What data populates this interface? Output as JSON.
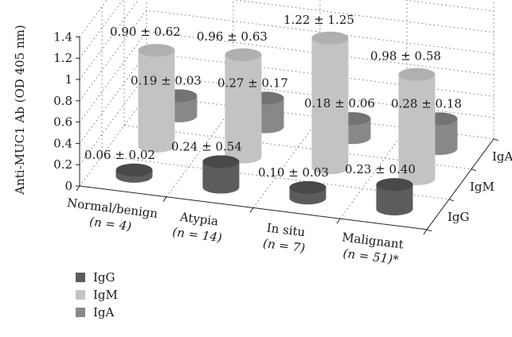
{
  "chart_data": {
    "type": "bar",
    "subtype": "3d-cylinder",
    "ylabel": "Anti-MUC1 Ab (OD 405 nm)",
    "ylim": [
      0,
      1.4
    ],
    "yticks": [
      "0",
      "0.2",
      "0.4",
      "0.6",
      "0.8",
      "1",
      "1.2",
      "1.4"
    ],
    "grid": true,
    "legend_position": "bottom-left",
    "categories": [
      {
        "name": "Normal/benign",
        "n": "(n = 4)"
      },
      {
        "name": "Atypia",
        "n": "(n = 14)"
      },
      {
        "name": "In situ",
        "n": "(n = 7)"
      },
      {
        "name": "Malignant",
        "n": "(n = 51)*"
      }
    ],
    "series": [
      {
        "name": "IgG",
        "color": "#5c5c5c",
        "top": "#494949",
        "values": [
          0.06,
          0.24,
          0.1,
          0.23
        ],
        "labels": [
          "0.06 ± 0.02",
          "0.24 ± 0.54",
          "0.10 ± 0.03",
          "0.23 ± 0.40"
        ]
      },
      {
        "name": "IgM",
        "color": "#c3c3c3",
        "top": "#b0b0b0",
        "values": [
          0.9,
          0.96,
          1.22,
          0.98
        ],
        "labels": [
          "0.90 ± 0.62",
          "0.96 ± 0.63",
          "1.22 ± 1.25",
          "0.98 ± 0.58"
        ]
      },
      {
        "name": "IgA",
        "color": "#888888",
        "top": "#737373",
        "values": [
          0.19,
          0.27,
          0.18,
          0.28
        ],
        "labels": [
          "0.19 ± 0.03",
          "0.27 ± 0.17",
          "0.18 ± 0.06",
          "0.28 ± 0.18"
        ]
      }
    ]
  }
}
